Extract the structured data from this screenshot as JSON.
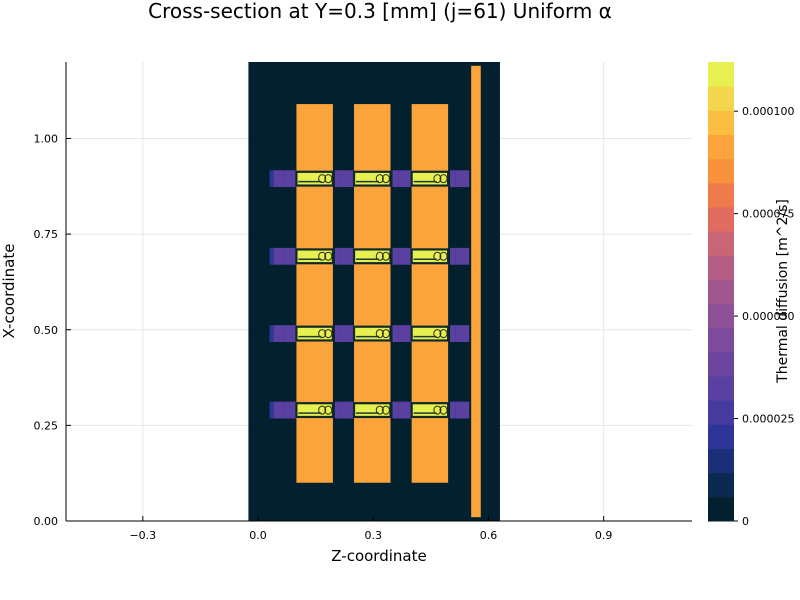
{
  "chart_data": {
    "type": "heatmap",
    "title": "Cross-section at Y=0.3 [mm] (j=61) Uniform α",
    "xlabel": "Z-coordinate",
    "ylabel": "X-coordinate",
    "xlim": [
      -0.5,
      1.13
    ],
    "ylim": [
      0,
      1.2
    ],
    "xticks": [
      -0.3,
      0.0,
      0.3,
      0.6,
      0.9
    ],
    "xtick_labels": [
      "−0.3",
      "0.0",
      "0.3",
      "0.6",
      "0.9"
    ],
    "yticks": [
      0.0,
      0.25,
      0.5,
      0.75,
      1.0
    ],
    "ytick_labels": [
      "0.00",
      "0.25",
      "0.50",
      "0.75",
      "1.00"
    ],
    "grid": true,
    "colorbar": {
      "label": "Thermal diffusion [m^2/s]",
      "range": [
        0,
        0.000112
      ],
      "ticks": [
        0,
        2.5e-05,
        5e-05,
        7.5e-05,
        0.0001
      ],
      "tick_labels": [
        "0",
        "0.000025",
        "0.000050",
        "0.000075",
        "0.000100"
      ],
      "levels": [
        "#03202f",
        "#0c2a4f",
        "#1a2f7a",
        "#2f3596",
        "#453a9e",
        "#5a40a1",
        "#6c459f",
        "#7d4b9b",
        "#8e5196",
        "#a15690",
        "#b65d83",
        "#ca6575",
        "#df6c5f",
        "#ee7b4b",
        "#f8913c",
        "#fba43c",
        "#fbbd3f",
        "#f3d64c",
        "#e7f050"
      ]
    },
    "domain": {
      "z": [
        -0.025,
        0.63
      ],
      "x": [
        0,
        1.2
      ],
      "value": 0
    },
    "blocks": {
      "z_ranges": [
        [
          0.1,
          0.195
        ],
        [
          0.25,
          0.345
        ],
        [
          0.4,
          0.495
        ]
      ],
      "x_range": [
        0.1,
        1.09
      ],
      "value": 9.2e-05
    },
    "right_strip": {
      "z": [
        0.555,
        0.58
      ],
      "x": [
        0.01,
        1.19
      ],
      "value": 9.2e-05
    },
    "hot_bands": {
      "x_centers": [
        0.895,
        0.692,
        0.49,
        0.29
      ],
      "half_height": 0.018,
      "value": 0.000112
    },
    "side_pads": {
      "value": 3.5e-05,
      "half_height": 0.022
    }
  }
}
